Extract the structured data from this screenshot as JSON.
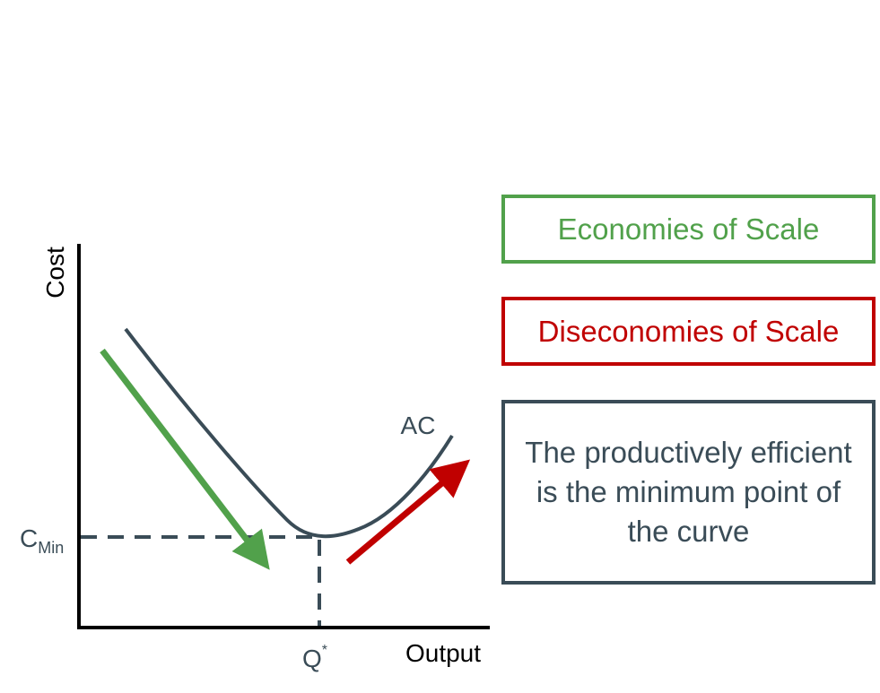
{
  "diagram": {
    "axes": {
      "y_label": "Cost",
      "x_label": "Output"
    },
    "curve_label": "AC",
    "c_min_label": {
      "main": "C",
      "sub": "Min"
    },
    "q_star_label": {
      "main": "Q",
      "sup": "*"
    },
    "legend": {
      "economies": "Economies of Scale",
      "diseconomies": "Diseconomies of Scale",
      "note": "The productively efficient is the minimum point of the curve"
    },
    "colors": {
      "curve": "#3a4c57",
      "axis": "#000000",
      "economies": "#51a14b",
      "diseconomies": "#c00000",
      "text_dark": "#3a4c57"
    }
  }
}
